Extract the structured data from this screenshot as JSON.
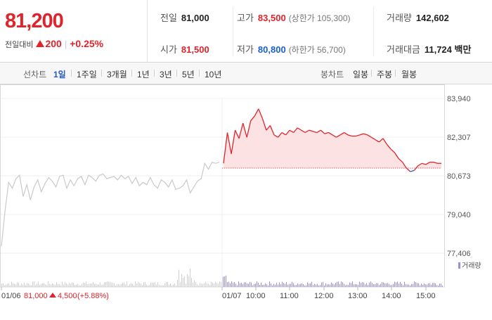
{
  "summary": {
    "price": "81,200",
    "change_label": "전일대비",
    "change_value": "200",
    "change_pct": "+0.25%",
    "colors": {
      "up": "#e0242b",
      "down": "#1a5fd2"
    }
  },
  "stats": {
    "prev_close_label": "전일",
    "prev_close": "81,000",
    "high_label": "고가",
    "high": "83,500",
    "upper_limit": "(상한가 105,300)",
    "volume_label": "거래량",
    "volume": "142,602",
    "open_label": "시가",
    "open": "81,500",
    "low_label": "저가",
    "low": "80,800",
    "lower_limit": "(하한가 56,700)",
    "amount_label": "거래대금",
    "amount": "11,724 백만"
  },
  "tabs": {
    "line_label": "선차트",
    "line_ranges": [
      "1일",
      "1주일",
      "3개월",
      "1년",
      "3년",
      "5년",
      "10년"
    ],
    "selected": "1일",
    "candle_label": "봉차트",
    "candle_ranges": [
      "일봉",
      "주봉",
      "월봉"
    ]
  },
  "chart_data": {
    "type": "line",
    "y_ticks": [
      "83,940",
      "82,307",
      "80,673",
      "79,040",
      "77,406"
    ],
    "ylim": [
      77406,
      83940
    ],
    "x_labels": [
      "01/06",
      "01/07",
      "10:00",
      "11:00",
      "12:00",
      "13:00",
      "14:00",
      "15:00"
    ],
    "prev_day_note": {
      "date": "01/06",
      "close": "81,000",
      "change": "4,500",
      "pct": "(+5.88%)"
    },
    "volume_legend": "거래량",
    "reference_line": 81000,
    "series": [
      {
        "day": "01/06",
        "points": [
          [
            0,
            77700
          ],
          [
            1,
            79200
          ],
          [
            2,
            80400
          ],
          [
            3,
            80150
          ],
          [
            4,
            80550
          ],
          [
            5,
            80700
          ],
          [
            6,
            79800
          ],
          [
            7,
            80300
          ],
          [
            8,
            79650
          ],
          [
            9,
            80200
          ],
          [
            10,
            80500
          ],
          [
            11,
            80000
          ],
          [
            12,
            80350
          ],
          [
            13,
            80600
          ],
          [
            14,
            80450
          ],
          [
            15,
            80200
          ],
          [
            16,
            80650
          ],
          [
            17,
            80700
          ],
          [
            18,
            80150
          ],
          [
            19,
            80500
          ],
          [
            20,
            80250
          ],
          [
            21,
            80550
          ],
          [
            22,
            80650
          ],
          [
            23,
            80300
          ],
          [
            24,
            80700
          ],
          [
            25,
            80600
          ],
          [
            26,
            80450
          ],
          [
            27,
            80700
          ],
          [
            28,
            80750
          ],
          [
            29,
            80550
          ],
          [
            30,
            80600
          ],
          [
            31,
            80650
          ],
          [
            32,
            80500
          ],
          [
            33,
            80700
          ],
          [
            34,
            80550
          ],
          [
            35,
            80650
          ],
          [
            36,
            80350
          ],
          [
            37,
            80600
          ],
          [
            38,
            80250
          ],
          [
            39,
            80400
          ],
          [
            40,
            80300
          ],
          [
            41,
            80600
          ],
          [
            42,
            80300
          ],
          [
            43,
            80150
          ],
          [
            44,
            80500
          ],
          [
            45,
            80400
          ],
          [
            46,
            80200
          ],
          [
            47,
            80500
          ],
          [
            48,
            80100
          ],
          [
            49,
            80150
          ],
          [
            50,
            80250
          ],
          [
            51,
            80500
          ],
          [
            52,
            79950
          ],
          [
            53,
            80200
          ],
          [
            54,
            80450
          ],
          [
            55,
            80550
          ],
          [
            56,
            81200
          ],
          [
            57,
            80950
          ],
          [
            58,
            81250
          ],
          [
            59,
            81200
          ],
          [
            60,
            81250
          ]
        ]
      },
      {
        "day": "01/07",
        "points": [
          [
            0,
            81200
          ],
          [
            1,
            82500
          ],
          [
            2,
            81600
          ],
          [
            3,
            82600
          ],
          [
            4,
            82250
          ],
          [
            5,
            82900
          ],
          [
            6,
            82300
          ],
          [
            7,
            83000
          ],
          [
            8,
            83200
          ],
          [
            9,
            83500
          ],
          [
            10,
            83100
          ],
          [
            11,
            82600
          ],
          [
            12,
            82800
          ],
          [
            13,
            82400
          ],
          [
            14,
            82300
          ],
          [
            15,
            82500
          ],
          [
            16,
            82400
          ],
          [
            17,
            82600
          ],
          [
            18,
            82500
          ],
          [
            19,
            82700
          ],
          [
            20,
            82600
          ],
          [
            21,
            82500
          ],
          [
            22,
            82600
          ],
          [
            23,
            82550
          ],
          [
            24,
            82500
          ],
          [
            25,
            82600
          ],
          [
            26,
            82450
          ],
          [
            27,
            82500
          ],
          [
            28,
            82400
          ],
          [
            29,
            82300
          ],
          [
            30,
            82400
          ],
          [
            31,
            82500
          ],
          [
            32,
            82400
          ],
          [
            33,
            82350
          ],
          [
            34,
            82350
          ],
          [
            35,
            82400
          ],
          [
            36,
            82450
          ],
          [
            37,
            82400
          ],
          [
            38,
            82300
          ],
          [
            39,
            82200
          ],
          [
            40,
            82100
          ],
          [
            41,
            82250
          ],
          [
            42,
            82000
          ],
          [
            43,
            81800
          ],
          [
            44,
            81650
          ],
          [
            45,
            81400
          ],
          [
            46,
            81250
          ],
          [
            47,
            81000
          ],
          [
            48,
            80850
          ],
          [
            49,
            80900
          ],
          [
            50,
            81100
          ],
          [
            51,
            81200
          ],
          [
            52,
            81150
          ],
          [
            53,
            81250
          ],
          [
            54,
            81250
          ],
          [
            55,
            81200
          ],
          [
            56,
            81200
          ]
        ]
      }
    ],
    "volume_scale": "relative"
  }
}
